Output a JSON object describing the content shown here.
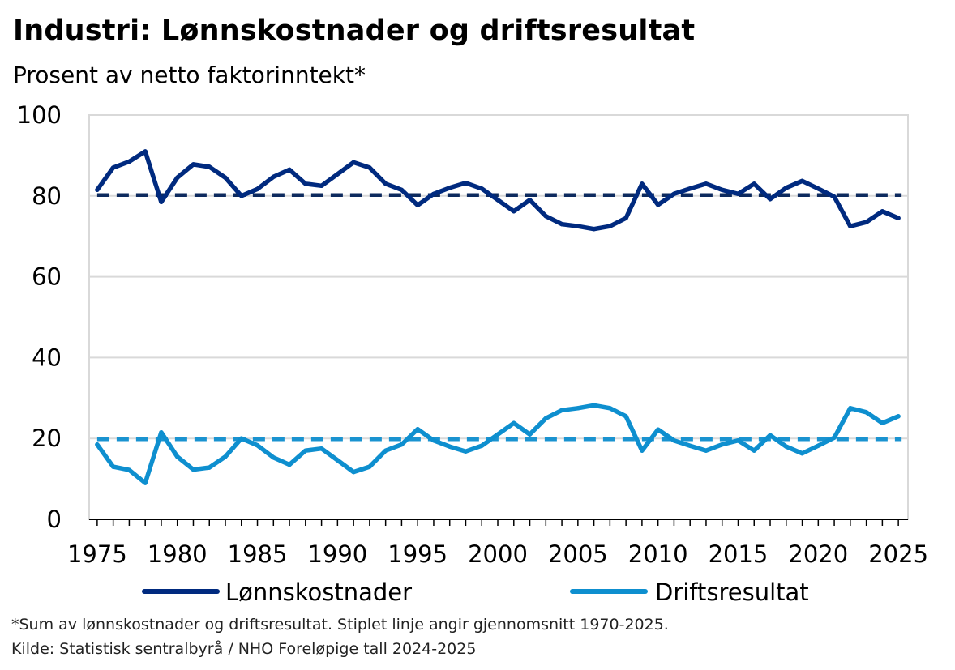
{
  "title": "Industri: Lønnskostnader og driftsresultat",
  "subtitle": "Prosent av netto faktorinntekt*",
  "footnote": "*Sum av lønnskostnader og driftsresultat. Stiplet linje angir gjennomsnitt 1970-2025.",
  "source": "Kilde: Statistisk sentralbyrå / NHO   Foreløpige tall 2024-2025",
  "chart_data": {
    "type": "line",
    "title": "Industri: Lønnskostnader og driftsresultat",
    "subtitle": "Prosent av netto faktorinntekt*",
    "xlabel": "",
    "ylabel": "",
    "xlim": [
      1974.5,
      2025.6
    ],
    "ylim": [
      0,
      100
    ],
    "y_ticks": [
      0,
      20,
      40,
      60,
      80,
      100
    ],
    "x_ticks": [
      1975,
      1980,
      1985,
      1990,
      1995,
      2000,
      2005,
      2010,
      2015,
      2020,
      2025
    ],
    "grid": "horizontal",
    "legend_position": "bottom",
    "x": [
      1975,
      1976,
      1977,
      1978,
      1979,
      1980,
      1981,
      1982,
      1983,
      1984,
      1985,
      1986,
      1987,
      1988,
      1989,
      1990,
      1991,
      1992,
      1993,
      1994,
      1995,
      1996,
      1997,
      1998,
      1999,
      2000,
      2001,
      2002,
      2003,
      2004,
      2005,
      2006,
      2007,
      2008,
      2009,
      2010,
      2011,
      2012,
      2013,
      2014,
      2015,
      2016,
      2017,
      2018,
      2019,
      2020,
      2021,
      2022,
      2023,
      2024,
      2025
    ],
    "series": [
      {
        "name": "Lønnskostnader",
        "color": "#002a7f",
        "values": [
          81.5,
          87.0,
          88.5,
          91.0,
          78.5,
          84.5,
          87.8,
          87.2,
          84.5,
          80.0,
          81.7,
          84.7,
          86.5,
          83.0,
          82.5,
          85.4,
          88.3,
          87.0,
          83.0,
          81.5,
          77.7,
          80.5,
          82.0,
          83.2,
          81.8,
          79.0,
          76.2,
          79.0,
          75.0,
          73.0,
          72.5,
          71.8,
          72.5,
          74.5,
          83.0,
          77.8,
          80.5,
          81.8,
          83.0,
          81.5,
          80.5,
          83.0,
          79.2,
          82.0,
          83.7,
          81.8,
          79.8,
          72.5,
          73.5,
          76.2,
          74.5
        ]
      },
      {
        "name": "Driftsresultat",
        "color": "#0e8fcf",
        "values": [
          18.5,
          13.0,
          12.2,
          9.0,
          21.5,
          15.5,
          12.3,
          12.8,
          15.5,
          20.0,
          18.3,
          15.3,
          13.5,
          17.0,
          17.5,
          14.6,
          11.7,
          13.0,
          17.0,
          18.5,
          22.3,
          19.5,
          18.0,
          16.8,
          18.2,
          21.0,
          23.8,
          21.0,
          25.0,
          27.0,
          27.5,
          28.2,
          27.5,
          25.5,
          17.0,
          22.2,
          19.5,
          18.2,
          17.0,
          18.5,
          19.5,
          17.0,
          20.8,
          18.0,
          16.3,
          18.2,
          20.2,
          27.5,
          26.5,
          23.8,
          25.5
        ]
      }
    ],
    "averages": [
      {
        "series": "Lønnskostnader",
        "value": 80.2,
        "style": "dashed",
        "color": "#0d2a5e"
      },
      {
        "series": "Driftsresultat",
        "value": 19.8,
        "style": "dashed",
        "color": "#1a93d0"
      }
    ]
  }
}
